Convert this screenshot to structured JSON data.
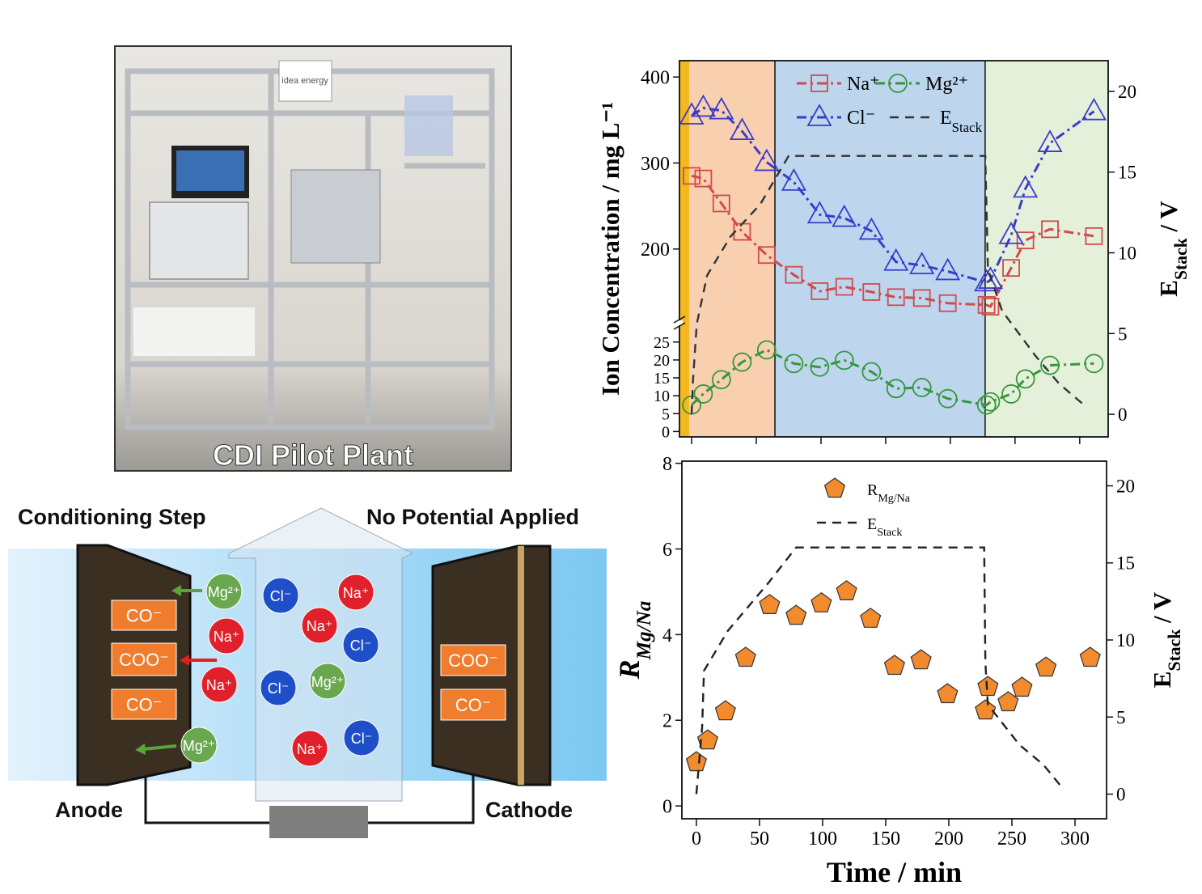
{
  "photo": {
    "caption": "CDI Pilot Plant",
    "logo": "idea energy"
  },
  "diagram": {
    "title_left": "Conditioning Step",
    "title_right": "No Potential Applied",
    "anode_label": "Anode",
    "cathode_label": "Cathode",
    "anode_groups": [
      "CO⁻",
      "COO⁻",
      "CO⁻"
    ],
    "cathode_groups": [
      "COO⁻",
      "CO⁻"
    ],
    "ions": [
      "Mg²⁺",
      "Na⁺",
      "Na⁺",
      "Mg²⁺",
      "Cl⁻",
      "Na⁺",
      "Na⁺",
      "Cl⁻",
      "Cl⁻",
      "Mg²⁺",
      "Na⁺",
      "Cl⁻"
    ]
  },
  "chart_data": [
    {
      "type": "scatter",
      "ylabel": "Ion Concentration / mg L⁻¹",
      "y2label": {
        "main": "E",
        "sub": "Stack",
        "tail": " / V"
      },
      "x": [
        0,
        9,
        23,
        39,
        58,
        79,
        99,
        118,
        139,
        158,
        178,
        198,
        228,
        231,
        247,
        258,
        277,
        311
      ],
      "xlim": [
        -9.4,
        322
      ],
      "xticks": [
        0,
        50,
        100,
        150,
        200,
        250,
        300
      ],
      "xtick_labels": false,
      "ylim": [
        -1.5,
        29.7
      ],
      "yticks": [
        0,
        5,
        10,
        15,
        20,
        25
      ],
      "ylim_upper": [
        117,
        419
      ],
      "yticks_upper": [
        200,
        300,
        400
      ],
      "y2lim": [
        -1.4,
        21.9
      ],
      "y2ticks": [
        0,
        5,
        10,
        15,
        20
      ],
      "regions": [
        {
          "start": -9.4,
          "end": -1.9,
          "color": "#f4b81f"
        },
        {
          "start": -1.9,
          "end": 64.4,
          "color": "#f8d0b0"
        },
        {
          "start": 64.4,
          "end": 226.9,
          "color": "#bdd6ee"
        },
        {
          "start": 226.9,
          "end": 322,
          "color": "#e5f0da"
        }
      ],
      "series": [
        {
          "name": "Na⁺",
          "color": "#d04a4a",
          "marker": "square",
          "segment": "upper",
          "values": [
            285,
            282,
            253,
            220,
            193,
            170,
            151,
            156,
            150,
            144,
            143,
            137,
            135,
            133,
            178,
            210,
            223,
            215
          ]
        },
        {
          "name": "Mg²⁺",
          "color": "#35973a",
          "marker": "circle",
          "segment": "lower",
          "values": [
            7.4,
            10.5,
            14.5,
            19.4,
            22.8,
            19,
            18,
            19.9,
            16.7,
            12,
            12.3,
            9.2,
            7.4,
            8.3,
            10.5,
            14.7,
            18.5,
            19
          ]
        },
        {
          "name": "Cl⁻",
          "color": "#3b3bcc",
          "marker": "triangle",
          "segment": "upper",
          "values": [
            355,
            364,
            361,
            337,
            301,
            278,
            240,
            236,
            221,
            185,
            181,
            174,
            161,
            164,
            216,
            270,
            323,
            360
          ]
        },
        {
          "name": "E",
          "name_sub": "Stack",
          "color": "#333333",
          "marker": "none",
          "axis": "y2",
          "x": [
            0,
            1,
            4,
            12,
            30,
            53,
            75,
            227,
            229,
            240,
            266,
            284,
            303
          ],
          "values": [
            0,
            2,
            5.6,
            8.6,
            11,
            13,
            16,
            16,
            9,
            6.4,
            3.6,
            1.9,
            0.6
          ]
        }
      ]
    },
    {
      "type": "scatter",
      "xlabel": "Time / min",
      "ylabel": {
        "main": "R",
        "sub": "Mg/Na"
      },
      "y2label": {
        "main": "E",
        "sub": "Stack",
        "tail": " / V"
      },
      "x": [
        0,
        9,
        23,
        39,
        58,
        79,
        99,
        119,
        138,
        157,
        178,
        199,
        229,
        231,
        247,
        258,
        277,
        312
      ],
      "xlim": [
        -11.5,
        325
      ],
      "xticks": [
        0,
        50,
        100,
        150,
        200,
        250,
        300
      ],
      "ylim": [
        -0.3,
        8.05
      ],
      "yticks": [
        0,
        2,
        4,
        6,
        8
      ],
      "y2lim": [
        -1.6,
        21.6
      ],
      "y2ticks": [
        0,
        5,
        10,
        15,
        20
      ],
      "series": [
        {
          "name": "R",
          "name_sub": "Mg/Na",
          "color": "#f28a2e",
          "marker": "pentagon",
          "line": false,
          "values": [
            1.02,
            1.53,
            2.21,
            3.46,
            4.69,
            4.44,
            4.73,
            5.01,
            4.37,
            3.27,
            3.4,
            2.61,
            2.23,
            2.78,
            2.42,
            2.76,
            3.23,
            3.46
          ]
        },
        {
          "name": "E",
          "name_sub": "Stack",
          "color": "#222222",
          "marker": "none",
          "axis": "y2",
          "x": [
            0,
            4.5,
            6,
            25,
            57,
            79,
            228,
            229,
            231,
            256,
            275,
            289
          ],
          "values": [
            0,
            4.3,
            8,
            10.6,
            13.7,
            16,
            16,
            8.5,
            5.8,
            3.2,
            1.9,
            0.5
          ]
        }
      ]
    }
  ]
}
